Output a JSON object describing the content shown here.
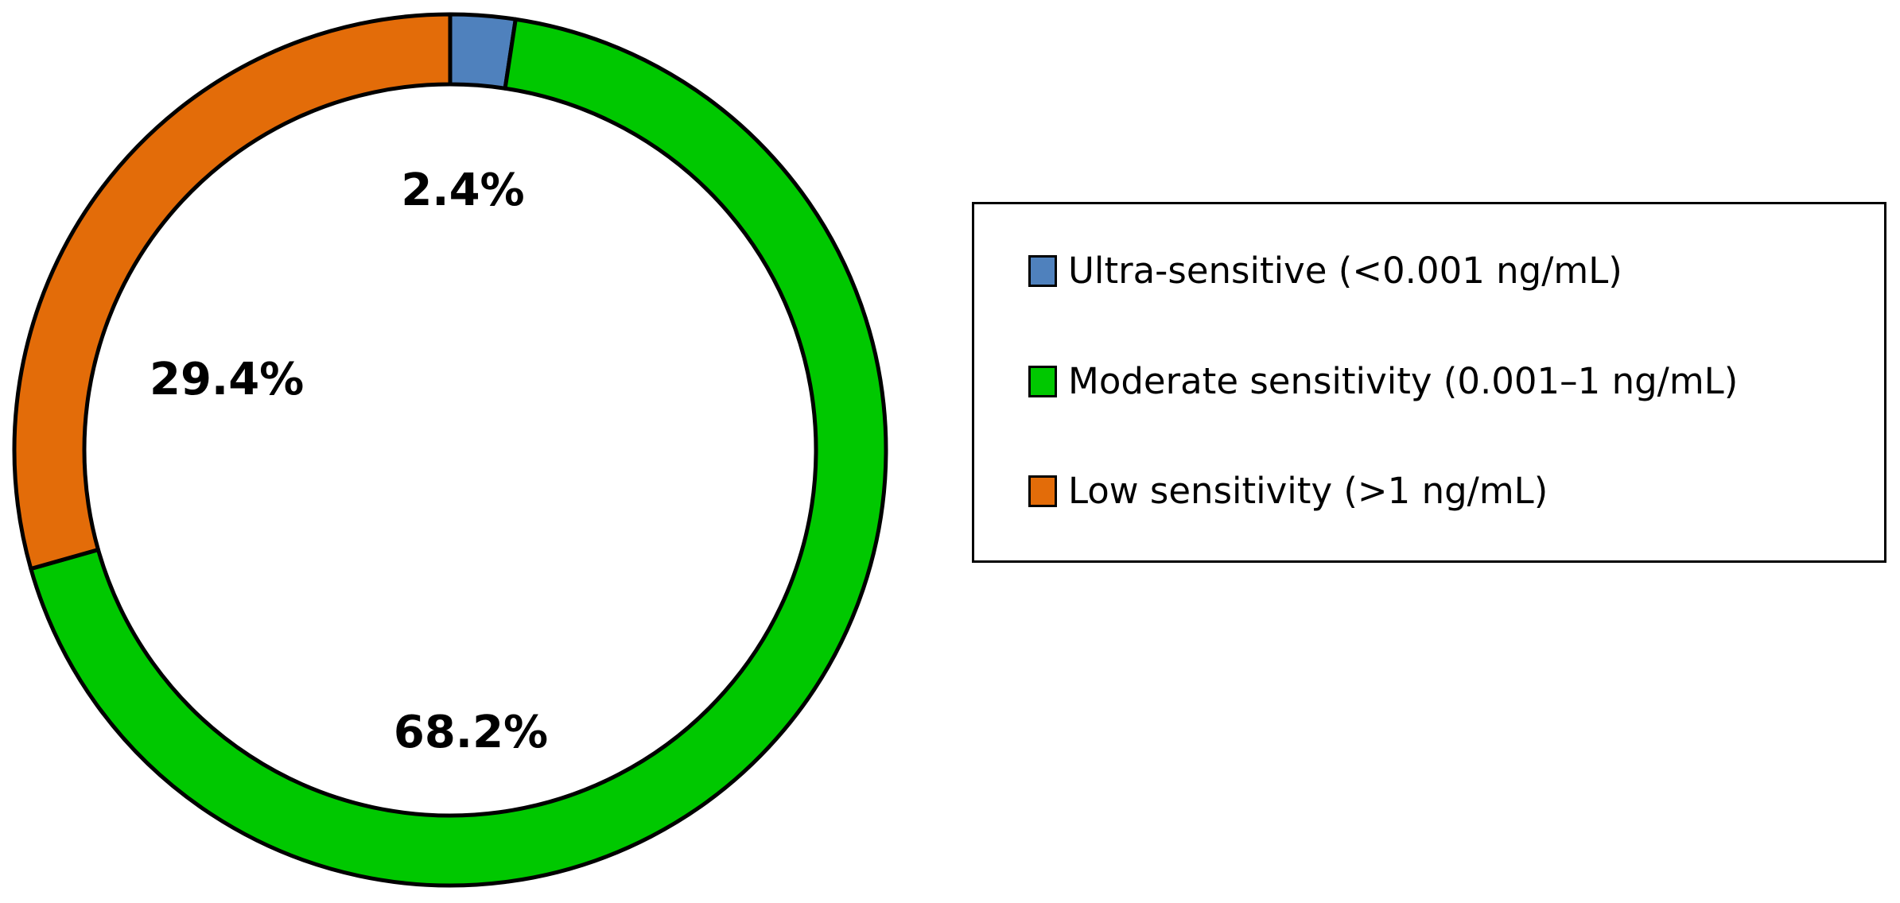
{
  "chart_data": {
    "type": "pie",
    "variant": "donut",
    "title": "",
    "categories": [
      "Ultra-sensitive (<0.001 ng/mL)",
      "Moderate sensitivity (0.001–1 ng/mL)",
      "Low sensitivity (>1 ng/mL)"
    ],
    "values": [
      2.4,
      68.2,
      29.4
    ],
    "value_labels": [
      "2.4%",
      "68.2%",
      "29.4%"
    ],
    "colors": [
      "#4f81bd",
      "#00c800",
      "#e36c09"
    ],
    "legend_position": "right"
  }
}
